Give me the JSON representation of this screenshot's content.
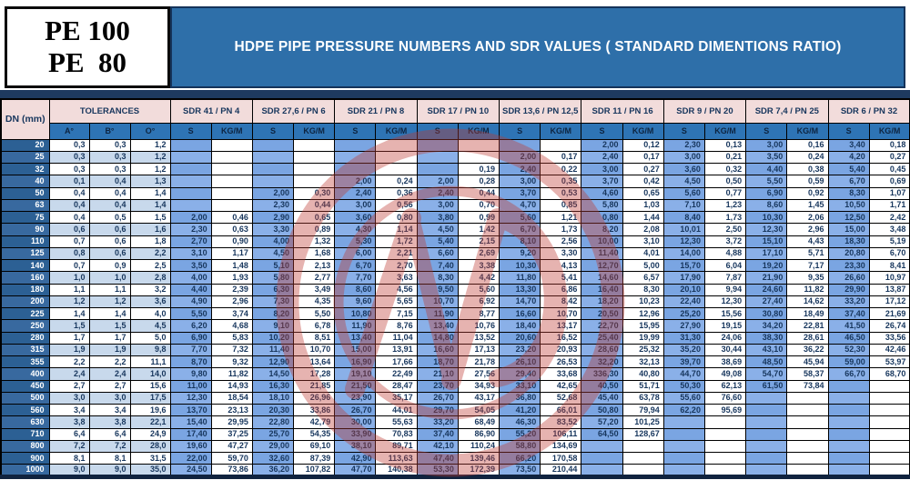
{
  "pe_box": {
    "line1": "PE 100",
    "line2": "PE  80"
  },
  "banner": {
    "title": "HDPE PIPE PRESSURE NUMBERS AND SDR VALUES ( STANDARD DIMENTIONS RATIO)"
  },
  "table": {
    "dn_header": "DN (mm)",
    "tolerances_header": "TOLERANCES",
    "tolerance_cols": [
      "A°",
      "B°",
      "O°"
    ],
    "sdr_groups": [
      "SDR 41 / PN 4",
      "SDR 27,6 / PN 6",
      "SDR 21 / PN 8",
      "SDR 17 / PN 10",
      "SDR 13,6 / PN 12,5",
      "SDR 11 / PN 16",
      "SDR 9 / PN 20",
      "SDR 7,4 / PN 25",
      "SDR 6 / PN 32"
    ],
    "sub_cols": [
      "S",
      "KG/M"
    ],
    "rows": [
      {
        "dn": "20",
        "tol": [
          "0,3",
          "0,3",
          "1,2"
        ],
        "vals": [
          "",
          "",
          "",
          "",
          "",
          "",
          "",
          "",
          "",
          "",
          "2,00",
          "0,12",
          "2,30",
          "0,13",
          "3,00",
          "0,16",
          "3,40",
          "0,18"
        ]
      },
      {
        "dn": "25",
        "tol": [
          "0,3",
          "0,3",
          "1,2"
        ],
        "vals": [
          "",
          "",
          "",
          "",
          "",
          "",
          "",
          "",
          "2,00",
          "0,17",
          "2,40",
          "0,17",
          "3,00",
          "0,21",
          "3,50",
          "0,24",
          "4,20",
          "0,27"
        ]
      },
      {
        "dn": "32",
        "tol": [
          "0,3",
          "0,3",
          "1,2"
        ],
        "vals": [
          "",
          "",
          "",
          "",
          "",
          "",
          "",
          "0,19",
          "2,40",
          "0,22",
          "3,00",
          "0,27",
          "3,60",
          "0,32",
          "4,40",
          "0,38",
          "5,40",
          "0,45"
        ]
      },
      {
        "dn": "40",
        "tol": [
          "0,1",
          "0,4",
          "1,3"
        ],
        "vals": [
          "",
          "",
          "",
          "",
          "2,00",
          "0,24",
          "2,00",
          "0,28",
          "3,00",
          "0,35",
          "3,70",
          "0,42",
          "4,50",
          "0,50",
          "5,50",
          "0,59",
          "6,70",
          "0,69"
        ]
      },
      {
        "dn": "50",
        "tol": [
          "0,4",
          "0,4",
          "1,4"
        ],
        "vals": [
          "",
          "",
          "2,00",
          "0,30",
          "2,40",
          "0,36",
          "2,40",
          "0,44",
          "3,70",
          "0,53",
          "4,60",
          "0,65",
          "5,60",
          "0,77",
          "6,90",
          "0,92",
          "8,30",
          "1,07"
        ]
      },
      {
        "dn": "63",
        "tol": [
          "0,4",
          "0,4",
          "1,4"
        ],
        "vals": [
          "",
          "",
          "2,30",
          "0,44",
          "3,00",
          "0,56",
          "3,00",
          "0,70",
          "4,70",
          "0,85",
          "5,80",
          "1,03",
          "7,10",
          "1,23",
          "8,60",
          "1,45",
          "10,50",
          "1,71"
        ]
      },
      {
        "dn": "75",
        "tol": [
          "0,4",
          "0,5",
          "1,5"
        ],
        "vals": [
          "2,00",
          "0,46",
          "2,90",
          "0,65",
          "3,60",
          "0,80",
          "3,80",
          "0,99",
          "5,60",
          "1,21",
          "0,80",
          "1,44",
          "8,40",
          "1,73",
          "10,30",
          "2,06",
          "12,50",
          "2,42"
        ]
      },
      {
        "dn": "90",
        "tol": [
          "0,6",
          "0,6",
          "1,6"
        ],
        "vals": [
          "2,30",
          "0,63",
          "3,30",
          "0,89",
          "4,30",
          "1,14",
          "4,50",
          "1,42",
          "6,70",
          "1,73",
          "8,20",
          "2,08",
          "10,01",
          "2,50",
          "12,30",
          "2,96",
          "15,00",
          "3,48"
        ]
      },
      {
        "dn": "110",
        "tol": [
          "0,7",
          "0,6",
          "1,8"
        ],
        "vals": [
          "2,70",
          "0,90",
          "4,00",
          "1,32",
          "5,30",
          "1,72",
          "5,40",
          "2,15",
          "8,10",
          "2,56",
          "10,00",
          "3,10",
          "12,30",
          "3,72",
          "15,10",
          "4,43",
          "18,30",
          "5,19"
        ]
      },
      {
        "dn": "125",
        "tol": [
          "0,8",
          "0,6",
          "2,2"
        ],
        "vals": [
          "3,10",
          "1,17",
          "4,50",
          "1,68",
          "6,00",
          "2,21",
          "6,60",
          "2,69",
          "9,20",
          "3,30",
          "11,40",
          "4,01",
          "14,00",
          "4,88",
          "17,10",
          "5,71",
          "20,80",
          "6,70"
        ]
      },
      {
        "dn": "140",
        "tol": [
          "0,7",
          "0,9",
          "2,5"
        ],
        "vals": [
          "3,50",
          "1,48",
          "5,10",
          "2,13",
          "6,70",
          "2,70",
          "7,40",
          "3,38",
          "10,30",
          "4,13",
          "12,70",
          "5,00",
          "15,70",
          "6,04",
          "19,20",
          "7,17",
          "23,30",
          "8,41"
        ]
      },
      {
        "dn": "160",
        "tol": [
          "1,0",
          "1,0",
          "2,8"
        ],
        "vals": [
          "4,00",
          "1,93",
          "5,80",
          "2,77",
          "7,70",
          "3,63",
          "8,30",
          "4,42",
          "11,80",
          "5,41",
          "14,60",
          "6,57",
          "17,90",
          "7,87",
          "21,90",
          "9,35",
          "26,60",
          "10,97"
        ]
      },
      {
        "dn": "180",
        "tol": [
          "1,1",
          "1,1",
          "3,2"
        ],
        "vals": [
          "4,40",
          "2,39",
          "6,30",
          "3,49",
          "8,60",
          "4,56",
          "9,50",
          "5,60",
          "13,30",
          "6,86",
          "16,40",
          "8,30",
          "20,10",
          "9,94",
          "24,60",
          "11,82",
          "29,90",
          "13,87"
        ]
      },
      {
        "dn": "200",
        "tol": [
          "1,2",
          "1,2",
          "3,6"
        ],
        "vals": [
          "4,90",
          "2,96",
          "7,30",
          "4,35",
          "9,60",
          "5,65",
          "10,70",
          "6,92",
          "14,70",
          "8,42",
          "18,20",
          "10,23",
          "22,40",
          "12,30",
          "27,40",
          "14,62",
          "33,20",
          "17,12"
        ]
      },
      {
        "dn": "225",
        "tol": [
          "1,4",
          "1,4",
          "4,0"
        ],
        "vals": [
          "5,50",
          "3,74",
          "8,20",
          "5,50",
          "10,80",
          "7,15",
          "11,90",
          "8,77",
          "16,60",
          "10,70",
          "20,50",
          "12,96",
          "25,20",
          "15,56",
          "30,80",
          "18,49",
          "37,40",
          "21,69"
        ]
      },
      {
        "dn": "250",
        "tol": [
          "1,5",
          "1,5",
          "4,5"
        ],
        "vals": [
          "6,20",
          "4,68",
          "9,10",
          "6,78",
          "11,90",
          "8,76",
          "13,40",
          "10,76",
          "18,40",
          "13,17",
          "22,70",
          "15,95",
          "27,90",
          "19,15",
          "34,20",
          "22,81",
          "41,50",
          "26,74"
        ]
      },
      {
        "dn": "280",
        "tol": [
          "1,7",
          "1,7",
          "5,0"
        ],
        "vals": [
          "6,90",
          "5,83",
          "10,20",
          "8,51",
          "13,40",
          "11,04",
          "14,80",
          "13,52",
          "20,60",
          "16,52",
          "25,40",
          "19,99",
          "31,30",
          "24,06",
          "38,30",
          "28,61",
          "46,50",
          "33,56"
        ]
      },
      {
        "dn": "315",
        "tol": [
          "1,9",
          "1,9",
          "9,8"
        ],
        "vals": [
          "7,70",
          "7,32",
          "11,40",
          "10,70",
          "15,00",
          "13,91",
          "16,60",
          "17,13",
          "23,20",
          "20,93",
          "28,60",
          "25,32",
          "35,20",
          "30,44",
          "43,10",
          "36,22",
          "52,30",
          "42,46"
        ]
      },
      {
        "dn": "355",
        "tol": [
          "2,2",
          "2,2",
          "11,1"
        ],
        "vals": [
          "8,70",
          "9,32",
          "12,90",
          "13,64",
          "16,90",
          "17,66",
          "18,70",
          "21,78",
          "26,10",
          "26,53",
          "32,20",
          "32,13",
          "39,70",
          "38,69",
          "48,50",
          "45,94",
          "59,00",
          "53,97"
        ]
      },
      {
        "dn": "400",
        "tol": [
          "2,4",
          "2,4",
          "14,0"
        ],
        "vals": [
          "9,80",
          "11,82",
          "14,50",
          "17,28",
          "19,10",
          "22,49",
          "21,10",
          "27,56",
          "29,40",
          "33,68",
          "336,30",
          "40,80",
          "44,70",
          "49,08",
          "54,70",
          "58,37",
          "66,70",
          "68,70"
        ]
      },
      {
        "dn": "450",
        "tol": [
          "2,7",
          "2,7",
          "15,6"
        ],
        "vals": [
          "11,00",
          "14,93",
          "16,30",
          "21,85",
          "21,50",
          "28,47",
          "23,70",
          "34,93",
          "33,10",
          "42,65",
          "40,50",
          "51,71",
          "50,30",
          "62,13",
          "61,50",
          "73,84",
          "",
          ""
        ]
      },
      {
        "dn": "500",
        "tol": [
          "3,0",
          "3,0",
          "17,5"
        ],
        "vals": [
          "12,30",
          "18,54",
          "18,10",
          "26,96",
          "23,90",
          "35,17",
          "26,70",
          "43,17",
          "36,80",
          "52,68",
          "45,40",
          "63,78",
          "55,60",
          "76,60",
          "",
          "",
          "",
          ""
        ]
      },
      {
        "dn": "560",
        "tol": [
          "3,4",
          "3,4",
          "19,6"
        ],
        "vals": [
          "13,70",
          "23,13",
          "20,30",
          "33,86",
          "26,70",
          "44,01",
          "29,70",
          "54,05",
          "41,20",
          "66,01",
          "50,80",
          "79,94",
          "62,20",
          "95,69",
          "",
          "",
          "",
          ""
        ]
      },
      {
        "dn": "630",
        "tol": [
          "3,8",
          "3,8",
          "22,1"
        ],
        "vals": [
          "15,40",
          "29,95",
          "22,80",
          "42,79",
          "30,00",
          "55,63",
          "33,20",
          "68,49",
          "46,30",
          "83,52",
          "57,20",
          "101,25",
          "",
          "",
          "",
          "",
          "",
          ""
        ]
      },
      {
        "dn": "710",
        "tol": [
          "6,4",
          "6,4",
          "24,9"
        ],
        "vals": [
          "17,40",
          "37,25",
          "25,70",
          "54,35",
          "33,90",
          "70,83",
          "37,40",
          "86,90",
          "55,20",
          "106,11",
          "64,50",
          "128,67",
          "",
          "",
          "",
          "",
          "",
          ""
        ]
      },
      {
        "dn": "800",
        "tol": [
          "7,2",
          "7,2",
          "28,0"
        ],
        "vals": [
          "19,60",
          "47,27",
          "29,00",
          "69,10",
          "38,10",
          "89,71",
          "42,10",
          "110,24",
          "58,80",
          "134,69",
          "",
          "",
          "",
          "",
          "",
          "",
          "",
          ""
        ]
      },
      {
        "dn": "900",
        "tol": [
          "8,1",
          "8,1",
          "31,5"
        ],
        "vals": [
          "22,00",
          "59,70",
          "32,60",
          "87,39",
          "42,90",
          "113,63",
          "47,40",
          "139,46",
          "66,20",
          "170,58",
          "",
          "",
          "",
          "",
          "",
          "",
          "",
          ""
        ]
      },
      {
        "dn": "1000",
        "tol": [
          "9,0",
          "9,0",
          "35,0"
        ],
        "vals": [
          "24,50",
          "73,86",
          "36,20",
          "107,82",
          "47,70",
          "140,38",
          "53,30",
          "172,39",
          "73,50",
          "210,44",
          "",
          "",
          "",
          "",
          "",
          "",
          "",
          ""
        ]
      }
    ]
  },
  "colors": {
    "banner_blue": "#2E6FA9",
    "header_pink": "#F2DCDB",
    "subheader_blue": "#2E74B5",
    "s_cell": "#7AA5E2",
    "s_cell_alt": "#8AB0E8",
    "dn_cell": "#2C6094",
    "dn_cell_alt": "#38699F",
    "tol_alt": "#C8D9EC",
    "text_navy": "#17365D",
    "watermark_red": "#BE3A31",
    "separator_navy": "#1E3A5F"
  },
  "watermark": {
    "name": "red-circular-logo-watermark"
  }
}
